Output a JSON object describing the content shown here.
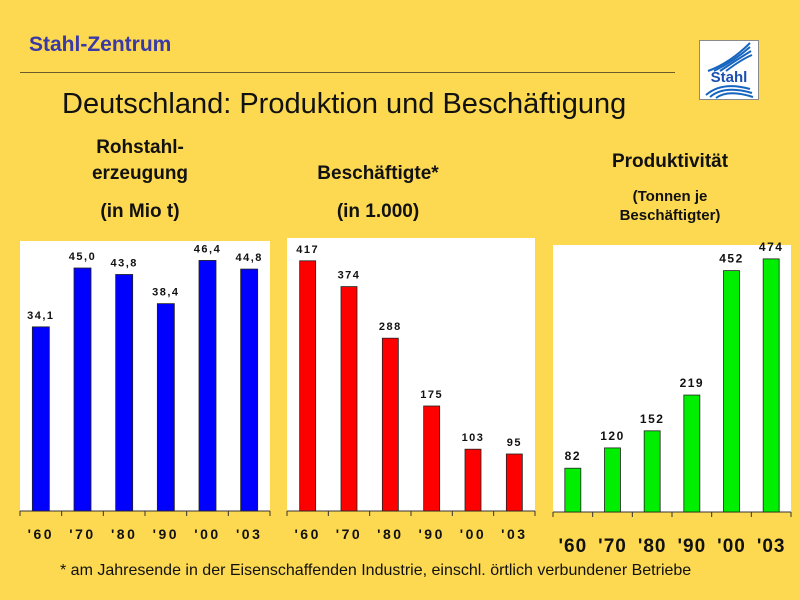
{
  "header": {
    "brand": "Stahl-Zentrum",
    "title": "Deutschland: Produktion und Beschäftigung",
    "logo_text": "Stahl"
  },
  "chart_data": [
    {
      "type": "bar",
      "title_lines": [
        "Rohstahl-",
        "erzeugung"
      ],
      "subtitle": "(in Mio t)",
      "categories": [
        "'60",
        "'70",
        "'80",
        "'90",
        "'00",
        "'03"
      ],
      "values": [
        34.1,
        45.0,
        43.8,
        38.4,
        46.4,
        44.8
      ],
      "labels": [
        "34,1",
        "45,0",
        "43,8",
        "38,4",
        "46,4",
        "44,8"
      ],
      "color": "#0000ff",
      "ylim": [
        0,
        50
      ],
      "grid": false
    },
    {
      "type": "bar",
      "title_lines": [
        "Beschäftigte*"
      ],
      "subtitle": "(in 1.000)",
      "categories": [
        "'60",
        "'70",
        "'80",
        "'90",
        "'00",
        "'03"
      ],
      "values": [
        417,
        374,
        288,
        175,
        103,
        95
      ],
      "labels": [
        "417",
        "374",
        "288",
        "175",
        "103",
        "95"
      ],
      "color": "#ff0000",
      "ylim": [
        0,
        455
      ],
      "grid": false
    },
    {
      "type": "bar",
      "title_lines": [
        "Produktivität"
      ],
      "subtitle_lines": [
        "(Tonnen je",
        "Beschäftigter)"
      ],
      "categories": [
        "'60",
        "'70",
        "'80",
        "'90",
        "'00",
        "'03"
      ],
      "values": [
        82,
        120,
        152,
        219,
        452,
        474
      ],
      "labels": [
        "82",
        "120",
        "152",
        "219",
        "452",
        "474"
      ],
      "color": "#00ee00",
      "ylim": [
        0,
        500
      ],
      "grid": false
    }
  ],
  "footnote": "* am Jahresende in der Eisenschaffenden Industrie, einschl. örtlich verbundener Betriebe"
}
